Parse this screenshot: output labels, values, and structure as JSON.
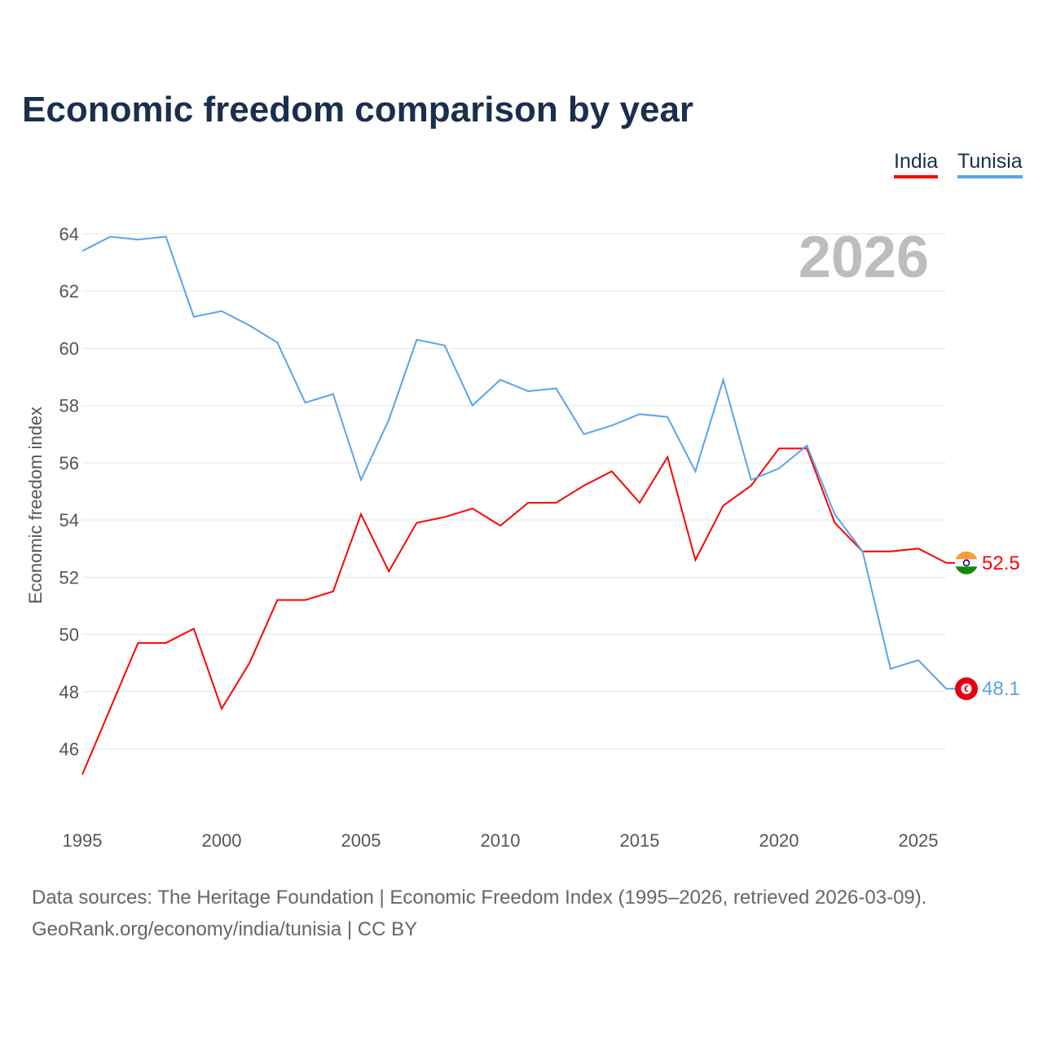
{
  "chart_data": {
    "type": "line",
    "title": "Economic freedom comparison by year",
    "xlabel": "",
    "ylabel": "Economic freedom index",
    "ylim": [
      44,
      65
    ],
    "xlim": [
      1995,
      2026
    ],
    "yticks": [
      46,
      48,
      50,
      52,
      54,
      56,
      58,
      60,
      62,
      64
    ],
    "xticks": [
      1995,
      2000,
      2005,
      2010,
      2015,
      2020,
      2025
    ],
    "grid": true,
    "legend_position": "top-right",
    "year_watermark": "2026",
    "x": [
      1995,
      1996,
      1997,
      1998,
      1999,
      2000,
      2001,
      2002,
      2003,
      2004,
      2005,
      2006,
      2007,
      2008,
      2009,
      2010,
      2011,
      2012,
      2013,
      2014,
      2015,
      2016,
      2017,
      2018,
      2019,
      2020,
      2021,
      2022,
      2023,
      2024,
      2025,
      2026
    ],
    "series": [
      {
        "name": "India",
        "color": "#ff0000",
        "end_label": "52.5",
        "flag": "india-flag",
        "values": [
          45.1,
          47.4,
          49.7,
          49.7,
          50.2,
          47.4,
          49.0,
          51.2,
          51.2,
          51.5,
          54.2,
          52.2,
          53.9,
          54.1,
          54.4,
          53.8,
          54.6,
          54.6,
          55.2,
          55.7,
          54.6,
          56.2,
          52.6,
          54.5,
          55.2,
          56.5,
          56.5,
          53.9,
          52.9,
          52.9,
          53.0,
          52.5
        ]
      },
      {
        "name": "Tunisia",
        "color": "#5ba3e8",
        "end_label": "48.1",
        "flag": "tunisia-flag",
        "values": [
          63.4,
          63.9,
          63.8,
          63.9,
          61.1,
          61.3,
          60.8,
          60.2,
          58.1,
          58.4,
          55.4,
          57.5,
          60.3,
          60.1,
          58.0,
          58.9,
          58.5,
          58.6,
          57.0,
          57.3,
          57.7,
          57.6,
          55.7,
          58.9,
          55.4,
          55.8,
          56.6,
          54.2,
          52.9,
          48.8,
          49.1,
          48.1
        ]
      }
    ]
  },
  "footer": {
    "sources": "Data sources: The Heritage Foundation | Economic Freedom Index (1995–2026, retrieved 2026-03-09).",
    "credit": "GeoRank.org/economy/india/tunisia | CC BY"
  }
}
